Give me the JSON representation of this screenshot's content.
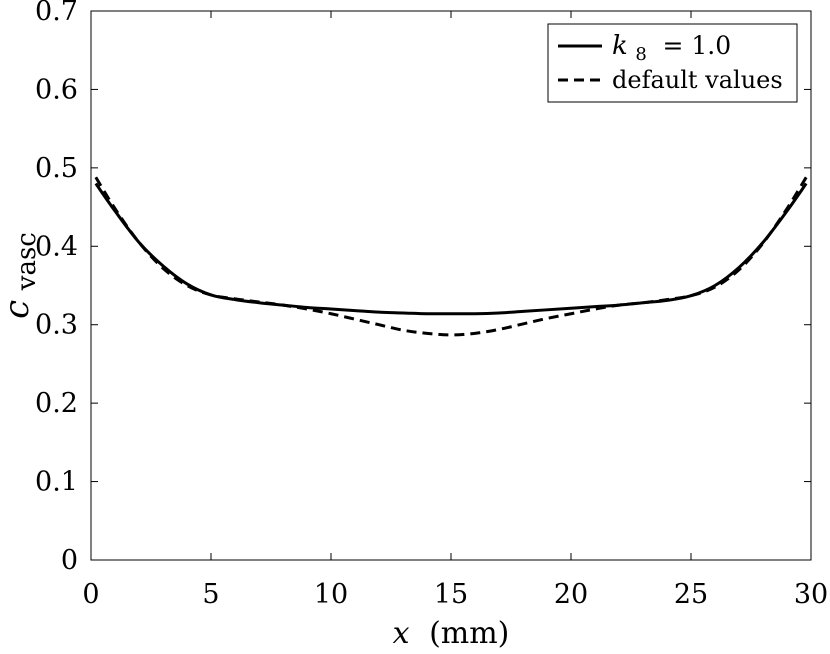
{
  "chart_data": {
    "type": "line",
    "title": "",
    "xlabel_var": "x",
    "xlabel_unit": "(mm)",
    "ylabel_main": "c",
    "ylabel_sub": "vasc",
    "xlim": [
      0,
      30
    ],
    "ylim": [
      0,
      0.7
    ],
    "xticks": [
      0,
      5,
      10,
      15,
      20,
      25,
      30
    ],
    "yticks": [
      0,
      0.1,
      0.2,
      0.3,
      0.4,
      0.5,
      0.6,
      0.7
    ],
    "xtick_labels": [
      "0",
      "5",
      "10",
      "15",
      "20",
      "25",
      "30"
    ],
    "ytick_labels": [
      "0",
      "0.1",
      "0.2",
      "0.3",
      "0.4",
      "0.5",
      "0.6",
      "0.7"
    ],
    "grid": false,
    "legend_position": "top-right",
    "legend": {
      "item1_var": "k",
      "item1_sub": "8",
      "item1_rest": " = 1.0",
      "item2": "default values"
    },
    "series": [
      {
        "style": "solid",
        "x": [
          0.2,
          1,
          2,
          3,
          4,
          5,
          6,
          7,
          8,
          9,
          10,
          11,
          12,
          13,
          14,
          15,
          16,
          17,
          18,
          19,
          20,
          21,
          22,
          23,
          24,
          25,
          26,
          27,
          28,
          29,
          29.8
        ],
        "y": [
          0.48,
          0.445,
          0.405,
          0.375,
          0.352,
          0.338,
          0.332,
          0.328,
          0.325,
          0.322,
          0.32,
          0.318,
          0.316,
          0.315,
          0.314,
          0.314,
          0.314,
          0.315,
          0.317,
          0.319,
          0.321,
          0.323,
          0.325,
          0.328,
          0.331,
          0.337,
          0.35,
          0.373,
          0.405,
          0.445,
          0.48
        ]
      },
      {
        "style": "dashed",
        "x": [
          0.2,
          1,
          2,
          3,
          4,
          5,
          6,
          7,
          8,
          9,
          10,
          11,
          12,
          13,
          14,
          15,
          16,
          17,
          18,
          19,
          20,
          21,
          22,
          23,
          24,
          25,
          26,
          27,
          28,
          29,
          29.8
        ],
        "y": [
          0.488,
          0.448,
          0.405,
          0.372,
          0.35,
          0.338,
          0.333,
          0.329,
          0.325,
          0.32,
          0.314,
          0.307,
          0.3,
          0.293,
          0.289,
          0.287,
          0.289,
          0.294,
          0.301,
          0.308,
          0.314,
          0.32,
          0.325,
          0.328,
          0.332,
          0.337,
          0.348,
          0.37,
          0.404,
          0.448,
          0.488
        ]
      }
    ]
  }
}
